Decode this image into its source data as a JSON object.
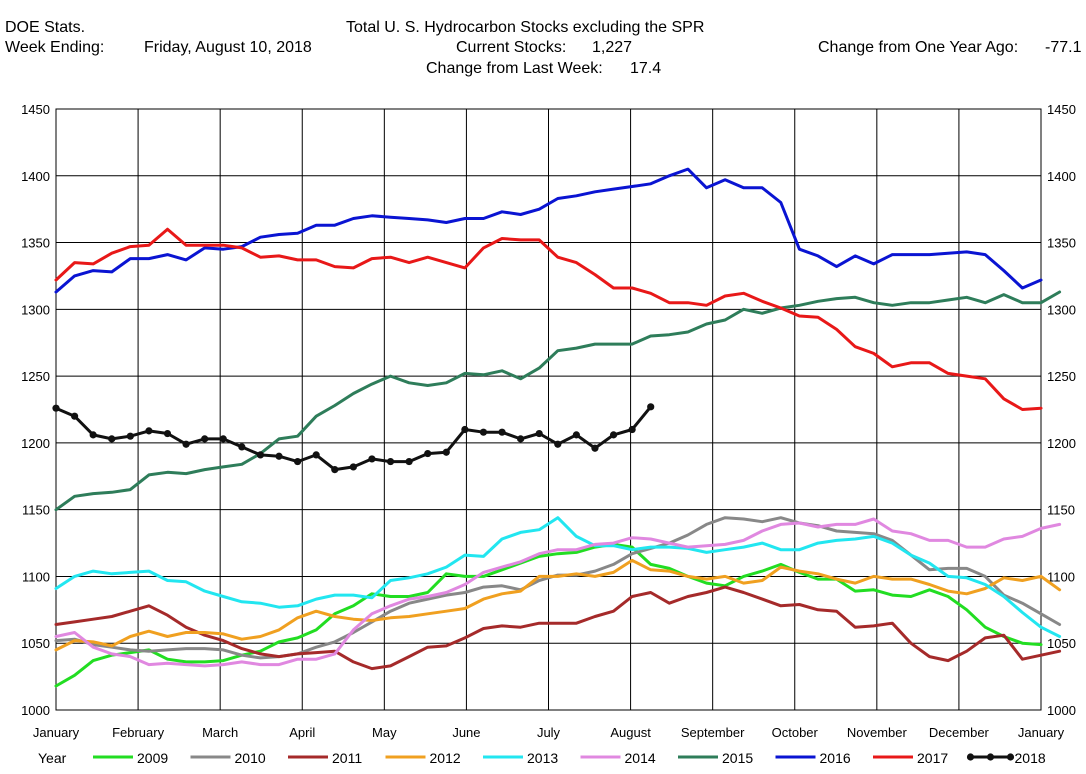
{
  "header": {
    "left_line1": "DOE Stats.",
    "left_line2_label": "Week Ending:",
    "left_line2_value": "Friday, August 10, 2018",
    "title": "Total U. S. Hydrocarbon Stocks excluding the SPR",
    "current_label": "Current Stocks:",
    "current_value": "1,227",
    "weekly_label": "Change from Last Week:",
    "weekly_value": "17.4",
    "yearly_label": "Change from One Year Ago:",
    "yearly_value": "-77.1"
  },
  "chart_data": {
    "type": "line",
    "title": "Total U. S. Hydrocarbon Stocks excluding the SPR",
    "ylim": [
      1000,
      1450
    ],
    "yticks": [
      1000,
      1050,
      1100,
      1150,
      1200,
      1250,
      1300,
      1350,
      1400,
      1450
    ],
    "xlim": [
      0,
      12
    ],
    "month_labels": [
      "January",
      "February",
      "March",
      "April",
      "May",
      "June",
      "July",
      "August",
      "September",
      "October",
      "November",
      "December",
      "January"
    ],
    "grid": true,
    "legend_title": "Year",
    "legend_position": "bottom",
    "series": [
      {
        "name": "2009",
        "color": "#22dd22",
        "values": [
          1018,
          1026,
          1037,
          1041,
          1043,
          1045,
          1038,
          1036,
          1036,
          1037,
          1041,
          1044,
          1051,
          1054,
          1060,
          1072,
          1078,
          1087,
          1085,
          1085,
          1088,
          1102,
          1100,
          1100,
          1105,
          1110,
          1115,
          1117,
          1118,
          1122,
          1124,
          1122,
          1109,
          1106,
          1100,
          1095,
          1093,
          1100,
          1104,
          1109,
          1103,
          1098,
          1098,
          1089,
          1090,
          1086,
          1085,
          1090,
          1085,
          1075,
          1062,
          1055,
          1050,
          1049
        ]
      },
      {
        "name": "2010",
        "color": "#888888",
        "values": [
          1052,
          1053,
          1049,
          1047,
          1045,
          1044,
          1045,
          1046,
          1046,
          1045,
          1041,
          1039,
          1040,
          1042,
          1047,
          1051,
          1058,
          1066,
          1074,
          1080,
          1083,
          1086,
          1088,
          1092,
          1093,
          1090,
          1097,
          1101,
          1101,
          1104,
          1109,
          1117,
          1121,
          1125,
          1131,
          1139,
          1144,
          1143,
          1141,
          1144,
          1140,
          1138,
          1134,
          1133,
          1132,
          1127,
          1116,
          1105,
          1106,
          1106,
          1100,
          1086,
          1080,
          1072,
          1064
        ]
      },
      {
        "name": "2011",
        "color": "#a52a2a",
        "values": [
          1064,
          1066,
          1068,
          1070,
          1074,
          1078,
          1071,
          1062,
          1056,
          1052,
          1046,
          1042,
          1040,
          1042,
          1043,
          1044,
          1036,
          1031,
          1033,
          1040,
          1047,
          1048,
          1054,
          1061,
          1063,
          1062,
          1065,
          1065,
          1065,
          1070,
          1074,
          1085,
          1088,
          1080,
          1085,
          1088,
          1092,
          1088,
          1083,
          1078,
          1079,
          1075,
          1074,
          1062,
          1063,
          1065,
          1050,
          1040,
          1037,
          1044,
          1054,
          1056,
          1038,
          1041,
          1044
        ]
      },
      {
        "name": "2012",
        "color": "#f0a020",
        "values": [
          1045,
          1052,
          1051,
          1048,
          1055,
          1059,
          1055,
          1058,
          1058,
          1057,
          1053,
          1055,
          1060,
          1069,
          1074,
          1070,
          1068,
          1067,
          1069,
          1070,
          1072,
          1074,
          1076,
          1083,
          1087,
          1089,
          1100,
          1100,
          1102,
          1100,
          1103,
          1112,
          1105,
          1104,
          1100,
          1098,
          1100,
          1095,
          1097,
          1107,
          1104,
          1102,
          1098,
          1095,
          1100,
          1098,
          1098,
          1094,
          1089,
          1087,
          1091,
          1099,
          1097,
          1100,
          1090
        ]
      },
      {
        "name": "2013",
        "color": "#22e6f0",
        "values": [
          1091,
          1100,
          1104,
          1102,
          1103,
          1104,
          1097,
          1096,
          1089,
          1085,
          1081,
          1080,
          1077,
          1078,
          1083,
          1086,
          1086,
          1084,
          1097,
          1099,
          1102,
          1107,
          1116,
          1115,
          1128,
          1133,
          1135,
          1144,
          1130,
          1123,
          1123,
          1120,
          1122,
          1122,
          1121,
          1118,
          1120,
          1122,
          1125,
          1120,
          1120,
          1125,
          1127,
          1128,
          1130,
          1125,
          1116,
          1110,
          1100,
          1099,
          1094,
          1085,
          1073,
          1062,
          1055
        ]
      },
      {
        "name": "2014",
        "color": "#e088e0",
        "values": [
          1055,
          1058,
          1047,
          1042,
          1040,
          1034,
          1035,
          1034,
          1033,
          1034,
          1036,
          1034,
          1034,
          1038,
          1038,
          1042,
          1060,
          1072,
          1078,
          1083,
          1085,
          1088,
          1094,
          1103,
          1107,
          1111,
          1117,
          1120,
          1120,
          1124,
          1125,
          1129,
          1128,
          1125,
          1122,
          1123,
          1124,
          1127,
          1134,
          1139,
          1140,
          1137,
          1139,
          1139,
          1143,
          1134,
          1132,
          1127,
          1127,
          1122,
          1122,
          1128,
          1130,
          1136,
          1139
        ]
      },
      {
        "name": "2015",
        "color": "#2e7d5a",
        "values": [
          1150,
          1160,
          1162,
          1163,
          1165,
          1176,
          1178,
          1177,
          1180,
          1182,
          1184,
          1192,
          1203,
          1205,
          1220,
          1228,
          1237,
          1244,
          1250,
          1245,
          1243,
          1245,
          1252,
          1251,
          1254,
          1248,
          1256,
          1269,
          1271,
          1274,
          1274,
          1274,
          1280,
          1281,
          1283,
          1289,
          1292,
          1300,
          1297,
          1301,
          1303,
          1306,
          1308,
          1309,
          1305,
          1303,
          1305,
          1305,
          1307,
          1309,
          1305,
          1311,
          1305,
          1305,
          1313
        ]
      },
      {
        "name": "2016",
        "color": "#0a14d2",
        "values": [
          1313,
          1325,
          1329,
          1328,
          1338,
          1338,
          1341,
          1337,
          1346,
          1345,
          1347,
          1354,
          1356,
          1357,
          1363,
          1363,
          1368,
          1370,
          1369,
          1368,
          1367,
          1365,
          1368,
          1368,
          1373,
          1371,
          1375,
          1383,
          1385,
          1388,
          1390,
          1392,
          1394,
          1400,
          1405,
          1391,
          1397,
          1391,
          1391,
          1380,
          1345,
          1340,
          1332,
          1340,
          1334,
          1341,
          1341,
          1341,
          1342,
          1343,
          1341,
          1329,
          1316,
          1322
        ]
      },
      {
        "name": "2017",
        "color": "#e81818",
        "values": [
          1322,
          1335,
          1334,
          1342,
          1347,
          1348,
          1360,
          1348,
          1348,
          1348,
          1346,
          1339,
          1340,
          1337,
          1337,
          1332,
          1331,
          1338,
          1339,
          1335,
          1339,
          1335,
          1331,
          1346,
          1353,
          1352,
          1352,
          1339,
          1335,
          1326,
          1316,
          1316,
          1312,
          1305,
          1305,
          1303,
          1310,
          1312,
          1306,
          1301,
          1295,
          1294,
          1285,
          1272,
          1267,
          1257,
          1260,
          1260,
          1252,
          1250,
          1248,
          1233,
          1225,
          1226
        ]
      },
      {
        "name": "2018",
        "color": "#111111",
        "values": [
          1226,
          1220,
          1206,
          1203,
          1205,
          1209,
          1207,
          1199,
          1203,
          1203,
          1197,
          1191,
          1190,
          1186,
          1191,
          1180,
          1182,
          1188,
          1186,
          1186,
          1192,
          1193,
          1210,
          1208,
          1208,
          1203,
          1207,
          1199,
          1206,
          1196,
          1206,
          1210,
          1227
        ]
      }
    ]
  }
}
